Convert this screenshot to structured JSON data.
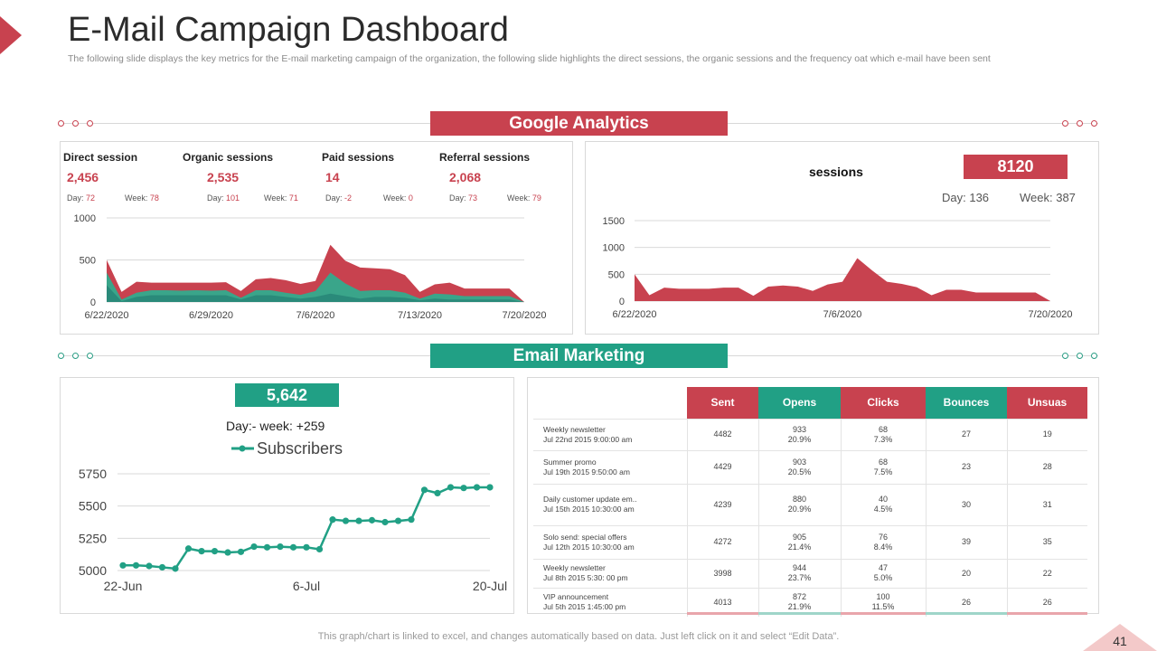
{
  "header": {
    "title": "E-Mail Campaign Dashboard",
    "subtitle": "The following slide displays the key metrics for the E-mail marketing campaign of the organization, the following slide highlights the direct sessions, the organic sessions and the frequency oat which e-mail have been sent"
  },
  "sections": {
    "google": "Google Analytics",
    "email": "Email Marketing"
  },
  "kpis": [
    {
      "label": "Direct session",
      "value": "2,456",
      "day_label": "Day:",
      "day": "72",
      "week_label": "Week:",
      "week": "78"
    },
    {
      "label": "Organic sessions",
      "value": "2,535",
      "day_label": "Day:",
      "day": "101",
      "week_label": "Week:",
      "week": "71"
    },
    {
      "label": "Paid sessions",
      "value": "14",
      "day_label": "Day:",
      "day": "-2",
      "week_label": "Week:",
      "week": "0"
    },
    {
      "label": "Referral sessions",
      "value": "2,068",
      "day_label": "Day:",
      "day": "73",
      "week_label": "Week:",
      "week": "79"
    }
  ],
  "sessions_panel": {
    "label": "sessions",
    "total": "8120",
    "day": "Day: 136",
    "week": "Week: 387"
  },
  "subscribers_panel": {
    "total": "5,642",
    "change": "Day:- week: +259"
  },
  "email_table": {
    "headers": [
      "Sent",
      "Opens",
      "Clicks",
      "Bounces",
      "Unsuas"
    ],
    "header_colors": [
      "#c8424f",
      "#21a085",
      "#c8424f",
      "#21a085",
      "#c8424f"
    ],
    "rows": [
      {
        "name": "Weekly newsletter",
        "date": "Jul 22nd 2015 9:00:00 am",
        "sent": "4482",
        "opens": "933",
        "opens_pct": "20.9%",
        "clicks": "68",
        "clicks_pct": "7.3%",
        "bounces": "27",
        "unsubs": "19"
      },
      {
        "name": "Summer promo",
        "date": "Jul 19th 2015 9:50:00 am",
        "sent": "4429",
        "opens": "903",
        "opens_pct": "20.5%",
        "clicks": "68",
        "clicks_pct": "7.5%",
        "bounces": "23",
        "unsubs": "28"
      },
      {
        "name": "Daily customer update em..",
        "date": "Jul 15th 2015 10:30:00 am",
        "sent": "4239",
        "opens": "880",
        "opens_pct": "20.9%",
        "clicks": "40",
        "clicks_pct": "4.5%",
        "bounces": "30",
        "unsubs": "31"
      },
      {
        "name": "Solo send: special offers",
        "date": "Jul 12th 2015 10:30:00 am",
        "sent": "4272",
        "opens": "905",
        "opens_pct": "21.4%",
        "clicks": "76",
        "clicks_pct": "8.4%",
        "bounces": "39",
        "unsubs": "35"
      },
      {
        "name": "Weekly newsletter",
        "date": "Jul 8th 2015 5:30: 00 pm",
        "sent": "3998",
        "opens": "944",
        "opens_pct": "23.7%",
        "clicks": "47",
        "clicks_pct": "5.0%",
        "bounces": "20",
        "unsubs": "22"
      },
      {
        "name": "VIP announcement",
        "date": "Jul 5th 2015 1:45:00 pm",
        "sent": "4013",
        "opens": "872",
        "opens_pct": "21.9%",
        "clicks": "100",
        "clicks_pct": "11.5%",
        "bounces": "26",
        "unsubs": "26"
      }
    ]
  },
  "footer": {
    "note": "This graph/chart is linked to excel, and changes automatically based on data. Just left click on it and select “Edit Data”.",
    "page": "41"
  },
  "colors": {
    "red": "#c8424f",
    "green": "#21a085"
  },
  "chart_data": [
    {
      "type": "area",
      "x": [
        "6/22/2020",
        "6/23/2020",
        "6/24/2020",
        "6/25/2020",
        "6/26/2020",
        "6/27/2020",
        "6/28/2020",
        "6/29/2020",
        "6/30/2020",
        "7/1/2020",
        "7/2/2020",
        "7/3/2020",
        "7/4/2020",
        "7/5/2020",
        "7/6/2020",
        "7/7/2020",
        "7/8/2020",
        "7/9/2020",
        "7/10/2020",
        "7/11/2020",
        "7/12/2020",
        "7/13/2020",
        "7/14/2020",
        "7/15/2020",
        "7/16/2020",
        "7/17/2020",
        "7/18/2020",
        "7/19/2020",
        "7/20/2020"
      ],
      "x_ticks": [
        "6/22/2020",
        "6/29/2020",
        "7/6/2020",
        "7/13/2020",
        "7/20/2020"
      ],
      "series": [
        {
          "values": [
            200,
            10,
            60,
            80,
            80,
            80,
            80,
            80,
            80,
            30,
            80,
            80,
            60,
            40,
            60,
            100,
            70,
            40,
            60,
            60,
            50,
            20,
            40,
            30,
            30,
            30,
            30,
            30,
            0
          ],
          "color": "#2a8a7a"
        },
        {
          "values": [
            150,
            20,
            50,
            60,
            60,
            55,
            60,
            55,
            60,
            20,
            60,
            60,
            50,
            45,
            70,
            250,
            150,
            90,
            80,
            80,
            60,
            20,
            60,
            60,
            40,
            40,
            40,
            40,
            0
          ],
          "color": "#3aa58a"
        },
        {
          "values": [
            150,
            90,
            130,
            90,
            90,
            95,
            90,
            95,
            95,
            80,
            130,
            145,
            150,
            130,
            120,
            330,
            270,
            280,
            260,
            250,
            210,
            80,
            110,
            140,
            90,
            90,
            90,
            90,
            0
          ],
          "color": "#c8424f"
        }
      ],
      "yticks": [
        0,
        500,
        1000
      ],
      "ylim": [
        0,
        1000
      ]
    },
    {
      "type": "area",
      "x": [
        "6/22/2020",
        "6/23/2020",
        "6/24/2020",
        "6/25/2020",
        "6/26/2020",
        "6/27/2020",
        "6/28/2020",
        "6/29/2020",
        "6/30/2020",
        "7/1/2020",
        "7/2/2020",
        "7/3/2020",
        "7/4/2020",
        "7/5/2020",
        "7/6/2020",
        "7/7/2020",
        "7/8/2020",
        "7/9/2020",
        "7/10/2020",
        "7/11/2020",
        "7/12/2020",
        "7/13/2020",
        "7/14/2020",
        "7/15/2020",
        "7/16/2020",
        "7/17/2020",
        "7/18/2020",
        "7/19/2020",
        "7/20/2020"
      ],
      "x_ticks": [
        "6/22/2020",
        "7/6/2020",
        "7/20/2020"
      ],
      "series": [
        {
          "values": [
            500,
            110,
            250,
            230,
            230,
            230,
            250,
            250,
            100,
            270,
            290,
            270,
            190,
            310,
            360,
            800,
            570,
            360,
            320,
            260,
            110,
            210,
            210,
            160,
            160,
            160,
            160,
            160,
            0
          ],
          "color": "#c8424f"
        }
      ],
      "yticks": [
        0,
        500,
        1000,
        1500
      ],
      "ylim": [
        0,
        1500
      ]
    },
    {
      "type": "line",
      "x": [
        "22-Jun",
        "23-Jun",
        "24-Jun",
        "25-Jun",
        "26-Jun",
        "27-Jun",
        "28-Jun",
        "29-Jun",
        "30-Jun",
        "1-Jul",
        "2-Jul",
        "3-Jul",
        "4-Jul",
        "5-Jul",
        "6-Jul",
        "7-Jul",
        "8-Jul",
        "9-Jul",
        "10-Jul",
        "11-Jul",
        "12-Jul",
        "13-Jul",
        "14-Jul",
        "15-Jul",
        "16-Jul",
        "17-Jul",
        "18-Jul",
        "19-Jul",
        "20-Jul"
      ],
      "x_ticks": [
        "22-Jun",
        "6-Jul",
        "20-Jul"
      ],
      "series": [
        {
          "name": "Subscribers",
          "values": [
            5040,
            5040,
            5035,
            5025,
            5015,
            5170,
            5150,
            5150,
            5140,
            5145,
            5185,
            5180,
            5185,
            5180,
            5180,
            5165,
            5395,
            5385,
            5385,
            5390,
            5375,
            5385,
            5395,
            5625,
            5600,
            5645,
            5640,
            5645,
            5645
          ],
          "color": "#21a085"
        }
      ],
      "yticks": [
        5000,
        5250,
        5500,
        5750
      ],
      "ylim": [
        5000,
        5750
      ],
      "legend": "top"
    }
  ]
}
